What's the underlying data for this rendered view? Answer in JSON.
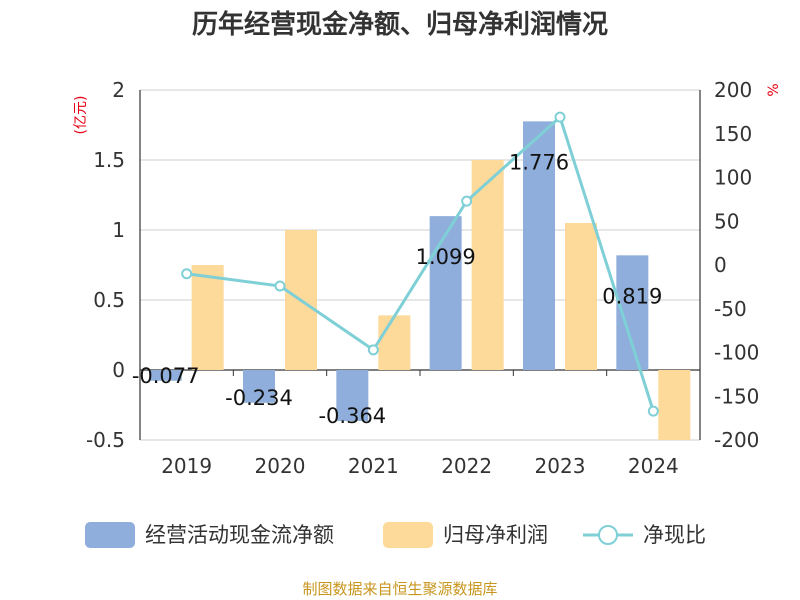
{
  "chart_data": {
    "type": "bar",
    "title": "历年经营现金净额、归母净利润情况",
    "categories": [
      "2019",
      "2020",
      "2021",
      "2022",
      "2023",
      "2024"
    ],
    "series": [
      {
        "name": "经营活动现金流净额",
        "type": "bar",
        "axis": "left",
        "color": "#8faedb",
        "values": [
          -0.077,
          -0.234,
          -0.364,
          1.099,
          1.776,
          0.819
        ],
        "labels": [
          "-0.077",
          "-0.234",
          "-0.364",
          "1.099",
          "1.776",
          "0.819"
        ]
      },
      {
        "name": "归母净利润",
        "type": "bar",
        "axis": "left",
        "color": "#fdd99a",
        "values": [
          0.75,
          1.0,
          0.39,
          1.5,
          1.05,
          -0.5
        ]
      },
      {
        "name": "净现比",
        "type": "line",
        "axis": "right",
        "color": "#7fd0d6",
        "values": [
          -10,
          -24,
          -97,
          73,
          169,
          -167
        ]
      }
    ],
    "left_axis": {
      "unit": "(亿元)",
      "ylim": [
        -0.5,
        2
      ],
      "ticks": [
        "2",
        "1.5",
        "1",
        "0.5",
        "0",
        "-0.5"
      ],
      "tick_values": [
        2,
        1.5,
        1,
        0.5,
        0,
        -0.5
      ]
    },
    "right_axis": {
      "unit": "%",
      "ylim": [
        -200,
        200
      ],
      "ticks": [
        "200",
        "150",
        "100",
        "50",
        "0",
        "-50",
        "-100",
        "-150",
        "-200"
      ],
      "tick_values": [
        200,
        150,
        100,
        50,
        0,
        -50,
        -100,
        -150,
        -200
      ]
    },
    "legend_position": "bottom",
    "grid": true
  },
  "source": "制图数据来自恒生聚源数据库"
}
